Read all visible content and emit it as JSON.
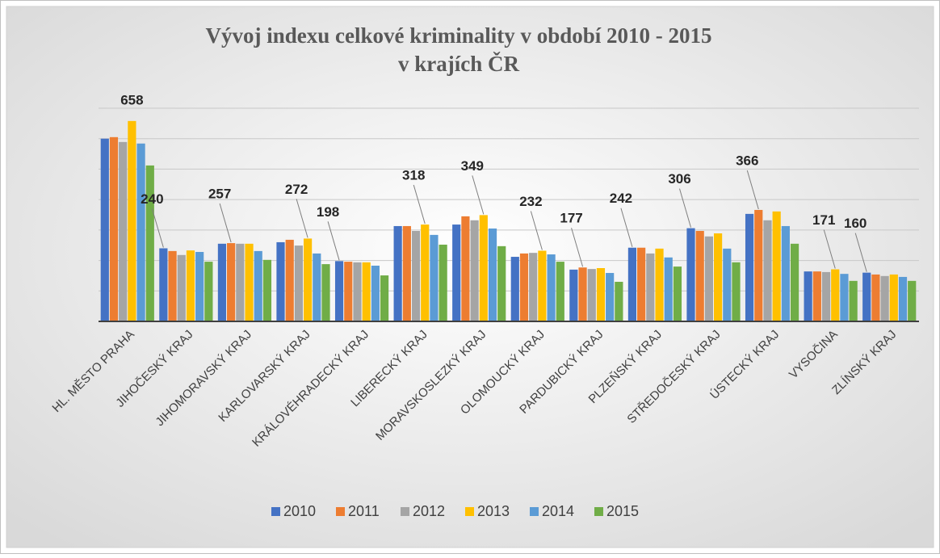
{
  "chart_data": {
    "type": "bar",
    "title": [
      "Vývoj indexu celkové kriminality v období 2010 - 2015",
      "v krajích ČR"
    ],
    "categories": [
      "HL. MĚSTO PRAHA",
      "JIHOČESKÝ KRAJ",
      "JIHOMORAVSKÝ KRAJ",
      "KARLOVARSKÝ KRAJ",
      "KRÁLOVÉHRADECKÝ KRAJ",
      "LIBERECKÝ KRAJ",
      "MORAVSKOSLEZKÝ KRAJ",
      "OLOMOUCKÝ KRAJ",
      "PARDUBICKÝ KRAJ",
      "PLZEŇSKÝ KRAJ",
      "STŘEDOČESKÝ KRAJ",
      "ÚSTECKÝ KRAJ",
      "VYSOČINA",
      "ZLÍNSKÝ KRAJ"
    ],
    "series": [
      {
        "name": "2010",
        "color": "#4472c4",
        "values": [
          600,
          240,
          255,
          260,
          198,
          313,
          318,
          212,
          170,
          242,
          306,
          353,
          164,
          160
        ],
        "value_labels": [
          null,
          "240",
          null,
          null,
          "198",
          null,
          null,
          null,
          null,
          "242",
          "306",
          null,
          null,
          "160"
        ]
      },
      {
        "name": "2011",
        "color": "#ed7d31",
        "values": [
          605,
          231,
          257,
          268,
          196,
          313,
          345,
          223,
          177,
          242,
          297,
          366,
          164,
          154
        ],
        "value_labels": [
          null,
          null,
          "257",
          null,
          null,
          null,
          null,
          null,
          "177",
          null,
          null,
          "366",
          null,
          null
        ]
      },
      {
        "name": "2012",
        "color": "#a5a5a5",
        "values": [
          589,
          218,
          255,
          249,
          194,
          297,
          332,
          225,
          172,
          223,
          279,
          332,
          162,
          149
        ]
      },
      {
        "name": "2013",
        "color": "#ffc000",
        "values": [
          658,
          233,
          255,
          272,
          194,
          318,
          349,
          232,
          175,
          239,
          289,
          361,
          171,
          154
        ],
        "value_labels": [
          "658",
          null,
          null,
          "272",
          null,
          "318",
          "349",
          "232",
          null,
          null,
          null,
          null,
          "171",
          null
        ]
      },
      {
        "name": "2014",
        "color": "#5b9bd5",
        "values": [
          584,
          228,
          231,
          223,
          183,
          284,
          305,
          220,
          159,
          210,
          239,
          313,
          156,
          146
        ]
      },
      {
        "name": "2015",
        "color": "#70ad47",
        "values": [
          512,
          196,
          202,
          188,
          151,
          252,
          247,
          196,
          130,
          180,
          194,
          255,
          133,
          133
        ]
      }
    ],
    "ylim": [
      0,
      700
    ],
    "yticks": [
      0,
      100,
      200,
      300,
      400,
      500,
      600,
      700
    ],
    "grid": true,
    "legend": "bottom"
  }
}
